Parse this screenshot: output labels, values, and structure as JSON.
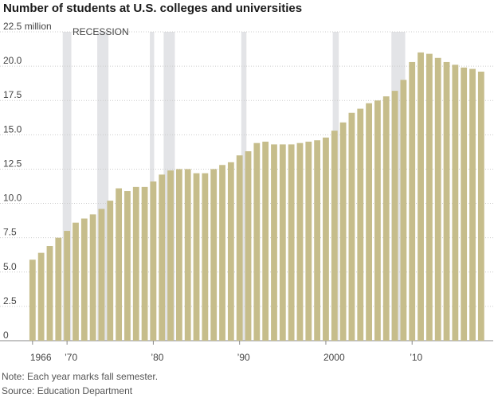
{
  "title": "Number of students at U.S. colleges and universities",
  "notes": {
    "note": "Note: Each year marks fall semester.",
    "source": "Source: Education Department"
  },
  "colors": {
    "bar": "#c6bd8b",
    "recession": "#e3e4e7",
    "grid": "#cccccc",
    "text": "#444444"
  },
  "chart_data": {
    "type": "bar",
    "title": "Number of students at U.S. colleges and universities",
    "ylabel_unit": "million",
    "ylim": [
      0,
      22.5
    ],
    "yticks": [
      0,
      2.5,
      5.0,
      7.5,
      10.0,
      12.5,
      15.0,
      17.5,
      20.0,
      22.5
    ],
    "ytick_labels": [
      "0",
      "2.5",
      "5.0",
      "7.5",
      "10.0",
      "12.5",
      "15.0",
      "17.5",
      "20.0",
      "22.5 million"
    ],
    "xlim": [
      1965,
      2019
    ],
    "xticks": [
      1966,
      1970,
      1980,
      1990,
      2000,
      2010
    ],
    "xtick_labels": [
      "1966",
      "’70",
      "’80",
      "’90",
      "2000",
      "’10"
    ],
    "recession_label": "RECESSION",
    "recessions": [
      [
        1969.5,
        1970.5
      ],
      [
        1973.5,
        1974.8
      ],
      [
        1979.6,
        1980.1
      ],
      [
        1981.2,
        1982.5
      ],
      [
        1990.2,
        1990.8
      ],
      [
        2000.8,
        2001.5
      ],
      [
        2007.6,
        2009.2
      ]
    ],
    "grid": true,
    "x": [
      1966,
      1967,
      1968,
      1969,
      1970,
      1971,
      1972,
      1973,
      1974,
      1975,
      1976,
      1977,
      1978,
      1979,
      1980,
      1981,
      1982,
      1983,
      1984,
      1985,
      1986,
      1987,
      1988,
      1989,
      1990,
      1991,
      1992,
      1993,
      1994,
      1995,
      1996,
      1997,
      1998,
      1999,
      2000,
      2001,
      2002,
      2003,
      2004,
      2005,
      2006,
      2007,
      2008,
      2009,
      2010,
      2011,
      2012,
      2013,
      2014,
      2015,
      2016,
      2017,
      2018
    ],
    "values": [
      5.9,
      6.4,
      6.9,
      7.5,
      8.0,
      8.6,
      8.9,
      9.2,
      9.6,
      10.2,
      11.1,
      10.9,
      11.2,
      11.2,
      11.6,
      12.1,
      12.4,
      12.5,
      12.5,
      12.2,
      12.2,
      12.5,
      12.8,
      13.0,
      13.5,
      13.8,
      14.4,
      14.5,
      14.3,
      14.3,
      14.3,
      14.4,
      14.5,
      14.6,
      14.8,
      15.3,
      15.9,
      16.6,
      16.9,
      17.3,
      17.5,
      17.8,
      18.2,
      19.0,
      20.3,
      21.0,
      20.9,
      20.6,
      20.3,
      20.1,
      19.9,
      19.8,
      19.6
    ]
  }
}
